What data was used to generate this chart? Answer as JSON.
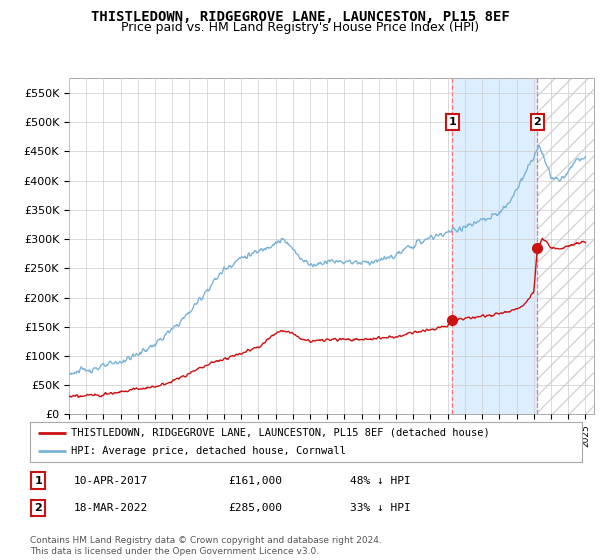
{
  "title": "THISTLEDOWN, RIDGEGROVE LANE, LAUNCESTON, PL15 8EF",
  "subtitle": "Price paid vs. HM Land Registry's House Price Index (HPI)",
  "ylabel_ticks": [
    "£0",
    "£50K",
    "£100K",
    "£150K",
    "£200K",
    "£250K",
    "£300K",
    "£350K",
    "£400K",
    "£450K",
    "£500K",
    "£550K"
  ],
  "ytick_values": [
    0,
    50000,
    100000,
    150000,
    200000,
    250000,
    300000,
    350000,
    400000,
    450000,
    500000,
    550000
  ],
  "ylim": [
    0,
    575000
  ],
  "xlim_start": 1995.0,
  "xlim_end": 2025.5,
  "hpi_color": "#7ab4d8",
  "price_color": "#cc1111",
  "marker_color": "#cc1111",
  "background_color": "#ffffff",
  "plot_bg_color": "#ffffff",
  "grid_color": "#cccccc",
  "shade_color": "#ddeeff",
  "legend_label_red": "THISTLEDOWN, RIDGEGROVE LANE, LAUNCESTON, PL15 8EF (detached house)",
  "legend_label_blue": "HPI: Average price, detached house, Cornwall",
  "annotation1_date": "10-APR-2017",
  "annotation1_price": "£161,000",
  "annotation1_hpi": "48% ↓ HPI",
  "annotation2_date": "18-MAR-2022",
  "annotation2_price": "£285,000",
  "annotation2_hpi": "33% ↓ HPI",
  "footnote": "Contains HM Land Registry data © Crown copyright and database right 2024.\nThis data is licensed under the Open Government Licence v3.0.",
  "sale1_x": 2017.27,
  "sale1_y": 161000,
  "sale2_x": 2022.21,
  "sale2_y": 285000,
  "title_fontsize": 10,
  "subtitle_fontsize": 9
}
